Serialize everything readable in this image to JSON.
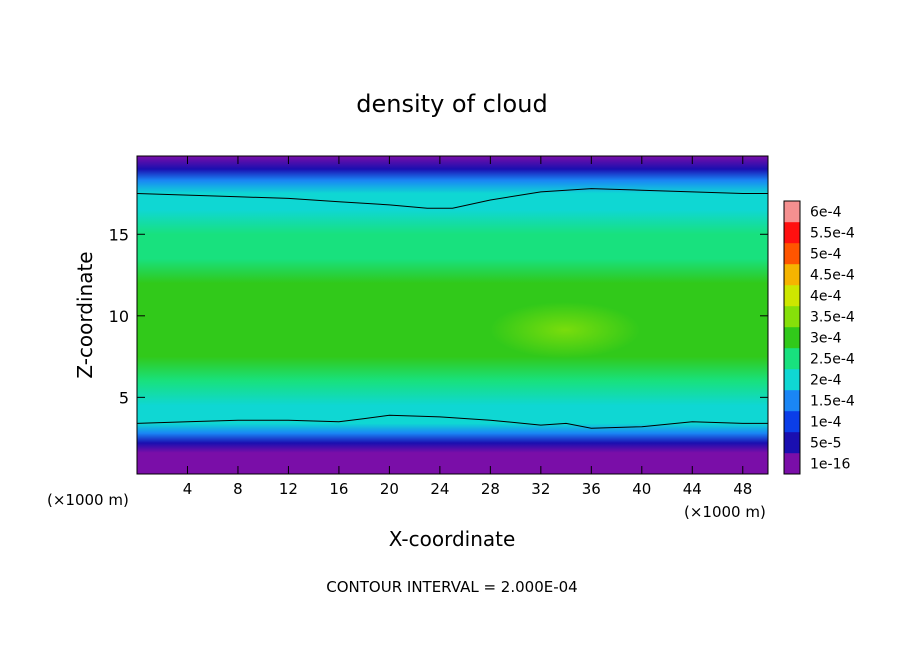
{
  "chart_data": {
    "type": "heatmap",
    "title": "density of cloud",
    "xlabel": "X-coordinate",
    "ylabel": "Z-coordinate",
    "x_unit_left": "(×1000 m)",
    "x_unit_right": "(×1000 m)",
    "xlim": [
      0,
      50
    ],
    "ylim": [
      0.3,
      19.8
    ],
    "x_ticks": [
      4,
      8,
      12,
      16,
      20,
      24,
      28,
      32,
      36,
      40,
      44,
      48
    ],
    "x_tick_labels": [
      "4",
      "8",
      "12",
      "16",
      "20",
      "24",
      "28",
      "32",
      "36",
      "40",
      "44",
      "48"
    ],
    "y_ticks": [
      5,
      10,
      15
    ],
    "y_tick_labels": [
      "5",
      "10",
      "15"
    ],
    "footer": "CONTOUR INTERVAL = 2.000E-04",
    "contour_interval": 0.0002,
    "colorbar": {
      "levels": [
        {
          "label": "1e-16",
          "value": 1e-16,
          "color": "#7a0ea8"
        },
        {
          "label": "5e-5",
          "value": 5e-05,
          "color": "#1a0fb0"
        },
        {
          "label": "1e-4",
          "value": 0.0001,
          "color": "#0b3ee8"
        },
        {
          "label": "1.5e-4",
          "value": 0.00015,
          "color": "#1a86f5"
        },
        {
          "label": "2e-4",
          "value": 0.0002,
          "color": "#0fd7d3"
        },
        {
          "label": "2.5e-4",
          "value": 0.00025,
          "color": "#18e17e"
        },
        {
          "label": "3e-4",
          "value": 0.0003,
          "color": "#31c91a"
        },
        {
          "label": "3.5e-4",
          "value": 0.00035,
          "color": "#86e00a"
        },
        {
          "label": "4e-4",
          "value": 0.0004,
          "color": "#cde700"
        },
        {
          "label": "4.5e-4",
          "value": 0.00045,
          "color": "#f5b400"
        },
        {
          "label": "5e-4",
          "value": 0.0005,
          "color": "#ff5500"
        },
        {
          "label": "5.5e-4",
          "value": 0.00055,
          "color": "#ff1010"
        },
        {
          "label": "6e-4",
          "value": 0.0006,
          "color": "#f59090"
        }
      ]
    },
    "contour_lines": [
      {
        "value": 0.0002,
        "level": "upper",
        "x": [
          0,
          4,
          8,
          12,
          16,
          20,
          23,
          25,
          28,
          32,
          36,
          40,
          44,
          48,
          50
        ],
        "y": [
          17.5,
          17.4,
          17.3,
          17.2,
          17.0,
          16.8,
          16.6,
          16.6,
          17.1,
          17.6,
          17.8,
          17.7,
          17.6,
          17.5,
          17.5
        ]
      },
      {
        "value": 0.0002,
        "level": "lower",
        "x": [
          0,
          4,
          8,
          12,
          16,
          18,
          20,
          24,
          28,
          32,
          34,
          36,
          40,
          44,
          48,
          50
        ],
        "y": [
          3.4,
          3.5,
          3.6,
          3.6,
          3.5,
          3.7,
          3.9,
          3.8,
          3.6,
          3.3,
          3.4,
          3.1,
          3.2,
          3.5,
          3.4,
          3.4
        ]
      }
    ],
    "vertical_profile": {
      "z": [
        0.3,
        1.2,
        1.6,
        2.2,
        2.8,
        3.4,
        4.5,
        6.0,
        7.5,
        9.0,
        10.5,
        12.0,
        13.5,
        15.0,
        16.5,
        17.5,
        18.3,
        19.0,
        19.8
      ],
      "density": [
        0.0,
        0.0,
        3e-05,
        9e-05,
        0.00015,
        0.0002,
        0.00024,
        0.00028,
        0.00031,
        0.00032,
        0.00031,
        0.00031,
        0.00029,
        0.00026,
        0.00022,
        0.0002,
        0.00015,
        9e-05,
        4e-05
      ]
    },
    "local_maximum": {
      "x": 34,
      "z": 9.4,
      "density": 0.00036
    }
  }
}
